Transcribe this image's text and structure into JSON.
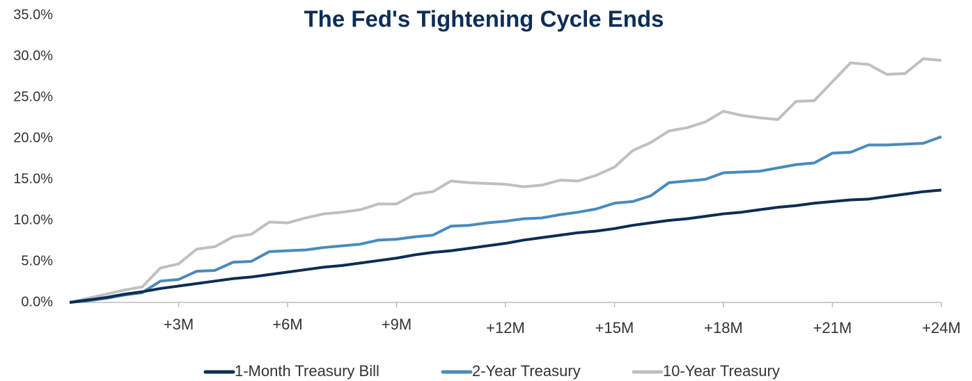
{
  "chart_data": {
    "type": "line",
    "title": "The Fed's Tightening Cycle Ends",
    "x": [
      0,
      0.5,
      1,
      1.5,
      2,
      2.5,
      3,
      3.5,
      4,
      4.5,
      5,
      5.5,
      6,
      6.5,
      7,
      7.5,
      8,
      8.5,
      9,
      9.5,
      10,
      10.5,
      11,
      11.5,
      12,
      12.5,
      13,
      13.5,
      14,
      14.5,
      15,
      15.5,
      16,
      16.5,
      17,
      17.5,
      18,
      18.5,
      19,
      19.5,
      20,
      20.5,
      21,
      21.5,
      22,
      22.5,
      23,
      23.5,
      24
    ],
    "series": [
      {
        "name": "1-Month Treasury Bill",
        "color": "#0c2d55",
        "values": [
          0,
          0.3,
          0.6,
          1.0,
          1.3,
          1.7,
          2.0,
          2.3,
          2.6,
          2.9,
          3.1,
          3.4,
          3.7,
          4.0,
          4.3,
          4.5,
          4.8,
          5.1,
          5.4,
          5.8,
          6.1,
          6.3,
          6.6,
          6.9,
          7.2,
          7.6,
          7.9,
          8.2,
          8.5,
          8.7,
          9.0,
          9.4,
          9.7,
          10.0,
          10.2,
          10.5,
          10.8,
          11.0,
          11.3,
          11.6,
          11.8,
          12.1,
          12.3,
          12.5,
          12.6,
          12.9,
          13.2,
          13.5,
          13.7
        ]
      },
      {
        "name": "2-Year Treasury",
        "color": "#4a8bbb",
        "values": [
          0,
          0.2,
          0.5,
          0.9,
          1.2,
          2.6,
          2.8,
          3.8,
          3.9,
          4.9,
          5.0,
          6.2,
          6.3,
          6.4,
          6.7,
          6.9,
          7.1,
          7.6,
          7.7,
          8.0,
          8.2,
          9.3,
          9.4,
          9.7,
          9.9,
          10.2,
          10.3,
          10.7,
          11.0,
          11.4,
          12.1,
          12.3,
          13.0,
          14.6,
          14.8,
          15.0,
          15.8,
          15.9,
          16.0,
          16.4,
          16.8,
          17.0,
          18.2,
          18.3,
          19.2,
          19.2,
          19.3,
          19.4,
          20.2
        ]
      },
      {
        "name": "10-Year Treasury",
        "color": "#c0c0c0",
        "values": [
          0,
          0.5,
          1.0,
          1.5,
          1.9,
          4.2,
          4.7,
          6.5,
          6.8,
          8.0,
          8.3,
          9.8,
          9.7,
          10.3,
          10.8,
          11.0,
          11.3,
          12.0,
          12.0,
          13.2,
          13.5,
          14.8,
          14.6,
          14.5,
          14.4,
          14.1,
          14.3,
          14.9,
          14.8,
          15.5,
          16.5,
          18.5,
          19.5,
          20.9,
          21.3,
          22.0,
          23.3,
          22.8,
          22.5,
          22.3,
          24.5,
          24.6,
          26.9,
          29.2,
          29.0,
          27.8,
          27.9,
          29.7,
          29.5
        ]
      }
    ],
    "xlim": [
      0,
      24
    ],
    "xticks": [
      {
        "value": 3,
        "label": "+3M"
      },
      {
        "value": 6,
        "label": "+6M"
      },
      {
        "value": 9,
        "label": "+9M"
      },
      {
        "value": 12,
        "label": "+12M"
      },
      {
        "value": 15,
        "label": "+15M"
      },
      {
        "value": 18,
        "label": "+18M"
      },
      {
        "value": 21,
        "label": "+21M"
      },
      {
        "value": 24,
        "label": "+24M"
      }
    ],
    "ylim": [
      0,
      35
    ],
    "yticks": [
      {
        "value": 0,
        "label": "0.0%"
      },
      {
        "value": 5,
        "label": "5.0%"
      },
      {
        "value": 10,
        "label": "10.0%"
      },
      {
        "value": 15,
        "label": "15.0%"
      },
      {
        "value": 20,
        "label": "20.0%"
      },
      {
        "value": 25,
        "label": "25.0%"
      },
      {
        "value": 30,
        "label": "30.0%"
      },
      {
        "value": 35,
        "label": "35.0%"
      }
    ],
    "grid": false,
    "legend": "bottom"
  }
}
